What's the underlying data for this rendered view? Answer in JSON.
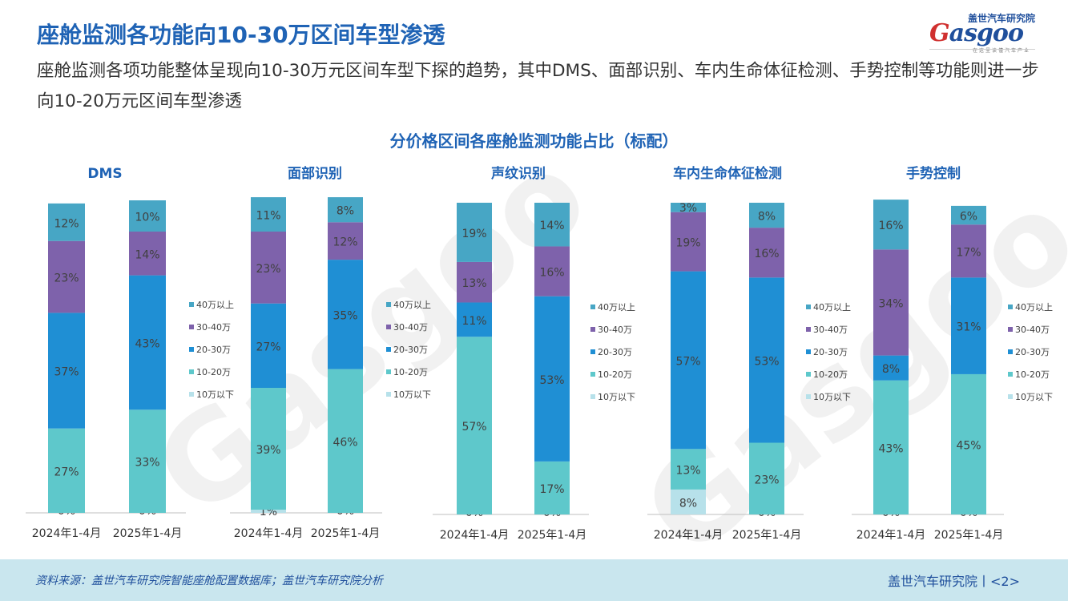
{
  "page": {
    "title": "座舱监测各功能向10-30万区间车型渗透",
    "subtitle": "座舱监测各项功能整体呈现向10-30万元区间车型下探的趋势，其中DMS、面部识别、车内生命体征检测、手势控制等功能则进一步向10-20万元区间车型渗透",
    "chart_title": "分价格区间各座舱监测功能占比（标配）"
  },
  "logo": {
    "cn": "盖世汽车研究院",
    "main_prefix": "G",
    "main_rest": "asgoo",
    "sub": "在这里读懂汽车产业"
  },
  "footer": {
    "source": "资料来源：盖世汽车研究院智能座舱配置数据库；盖世汽车研究院分析",
    "brand": "盖世汽车研究院丨<2>"
  },
  "colors": {
    "10万以下": "#b7e1ea",
    "10-20万": "#5ec8cb",
    "20-30万": "#1f8fd4",
    "30-40万": "#7e62ab",
    "40万以上": "#47a6c5",
    "title": "#1f63b5",
    "footer_bg": "#c9e6ee"
  },
  "chart_data": [
    {
      "type": "bar",
      "stacked": true,
      "title": "DMS",
      "categories": [
        "2024年1-4月",
        "2025年1-4月"
      ],
      "series": [
        {
          "name": "10万以下",
          "values": [
            0,
            0
          ]
        },
        {
          "name": "10-20万",
          "values": [
            27,
            33
          ]
        },
        {
          "name": "20-30万",
          "values": [
            37,
            43
          ]
        },
        {
          "name": "30-40万",
          "values": [
            23,
            14
          ]
        },
        {
          "name": "40万以上",
          "values": [
            12,
            10
          ]
        }
      ],
      "legend": "right"
    },
    {
      "type": "bar",
      "stacked": true,
      "title": "面部识别",
      "categories": [
        "2024年1-4月",
        "2025年1-4月"
      ],
      "series": [
        {
          "name": "10万以下",
          "values": [
            1,
            0
          ]
        },
        {
          "name": "10-20万",
          "values": [
            39,
            46
          ]
        },
        {
          "name": "20-30万",
          "values": [
            27,
            35
          ]
        },
        {
          "name": "30-40万",
          "values": [
            23,
            12
          ]
        },
        {
          "name": "40万以上",
          "values": [
            11,
            8
          ]
        }
      ],
      "legend": "right"
    },
    {
      "type": "bar",
      "stacked": true,
      "title": "声纹识别",
      "categories": [
        "2024年1-4月",
        "2025年1-4月"
      ],
      "series": [
        {
          "name": "10万以下",
          "values": [
            0,
            0
          ]
        },
        {
          "name": "10-20万",
          "values": [
            57,
            17
          ]
        },
        {
          "name": "20-30万",
          "values": [
            11,
            53
          ]
        },
        {
          "name": "30-40万",
          "values": [
            13,
            16
          ]
        },
        {
          "name": "40万以上",
          "values": [
            19,
            14
          ]
        }
      ],
      "legend": "right"
    },
    {
      "type": "bar",
      "stacked": true,
      "title": "车内生命体征检测",
      "categories": [
        "2024年1-4月",
        "2025年1-4月"
      ],
      "series": [
        {
          "name": "10万以下",
          "values": [
            8,
            0
          ]
        },
        {
          "name": "10-20万",
          "values": [
            13,
            23
          ]
        },
        {
          "name": "20-30万",
          "values": [
            57,
            53
          ]
        },
        {
          "name": "30-40万",
          "values": [
            19,
            16
          ]
        },
        {
          "name": "40万以上",
          "values": [
            3,
            8
          ]
        }
      ],
      "legend": "right"
    },
    {
      "type": "bar",
      "stacked": true,
      "title": "手势控制",
      "categories": [
        "2024年1-4月",
        "2025年1-4月"
      ],
      "series": [
        {
          "name": "10万以下",
          "values": [
            0,
            0
          ]
        },
        {
          "name": "10-20万",
          "values": [
            43,
            45
          ]
        },
        {
          "name": "20-30万",
          "values": [
            8,
            31
          ]
        },
        {
          "name": "30-40万",
          "values": [
            34,
            17
          ]
        },
        {
          "name": "40万以上",
          "values": [
            16,
            6
          ]
        }
      ],
      "legend": "right"
    }
  ],
  "legend_order": [
    "40万以上",
    "30-40万",
    "20-30万",
    "10-20万",
    "10万以下"
  ]
}
